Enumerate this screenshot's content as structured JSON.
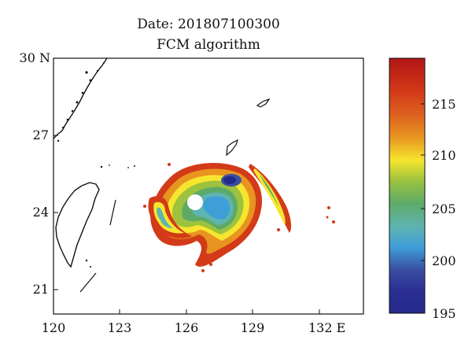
{
  "title": {
    "line1": "Date: 201807100300",
    "line2": "FCM algorithm"
  },
  "map": {
    "lon_ticks": [
      "120",
      "123",
      "126",
      "129",
      "132 E"
    ],
    "lat_ticks": [
      "30 N",
      "27",
      "24",
      "21"
    ],
    "lon_range": [
      120,
      134
    ],
    "lat_range": [
      20,
      30
    ]
  },
  "colorbar": {
    "tick_labels": [
      "215",
      "210",
      "205",
      "200",
      "195"
    ],
    "range": [
      195,
      219
    ],
    "colors": [
      "#b01515",
      "#d23a18",
      "#dd6020",
      "#e89420",
      "#f6e62e",
      "#9cc23e",
      "#5daa68",
      "#5eb4b0",
      "#3e9ed8",
      "#3a4fa2",
      "#2b2f94",
      "#242a8a"
    ]
  },
  "colors": {
    "land": "#111111",
    "frame": "#111111"
  }
}
